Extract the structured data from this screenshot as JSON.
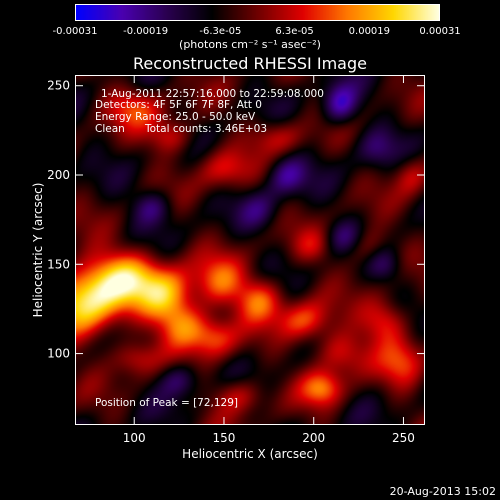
{
  "chart_data": {
    "type": "heatmap",
    "title": "Reconstructed RHESSI Image",
    "xlabel": "Heliocentric X (arcsec)",
    "ylabel": "Heliocentric Y (arcsec)",
    "xlim": [
      67,
      262
    ],
    "ylim": [
      60,
      256
    ],
    "x_ticks": [
      100,
      150,
      200,
      250
    ],
    "y_ticks": [
      100,
      150,
      200,
      250
    ],
    "colorbar": {
      "tick_labels": [
        "-0.00031",
        "-0.00019",
        "-6.3e-05",
        "6.3e-05",
        "0.00019",
        "0.00031"
      ],
      "tick_values": [
        -0.00031,
        -0.00019,
        -6.3e-05,
        6.3e-05,
        0.00019,
        0.00031
      ],
      "range": [
        -0.00031,
        0.00031
      ],
      "units": "(photons cm⁻² s⁻¹ asec⁻²)",
      "colors": [
        "#0000ff",
        "#4a00b0",
        "#2a0050",
        "#000000",
        "#6e0000",
        "#e00000",
        "#ff7a00",
        "#ffd700",
        "#ffffe0"
      ]
    },
    "annotations": {
      "time_range": "1-Aug-2011 22:57:16.000 to 22:59:08.000",
      "detectors": "Detectors: 4F 5F 6F 7F 8F, Att 0",
      "energy": "Energy Range: 25.0 - 50.0 keV",
      "method": "Clean",
      "counts": "Total counts: 3.46E+03",
      "peak": "Position of Peak = [72,129]"
    },
    "sources": [
      {
        "x": 72,
        "y": 129,
        "sx": 14,
        "sy": 14,
        "a": 1.0
      },
      {
        "x": 95,
        "y": 142,
        "sx": 14,
        "sy": 11,
        "a": 0.8
      },
      {
        "x": 118,
        "y": 132,
        "sx": 11,
        "sy": 11,
        "a": 0.75
      },
      {
        "x": 128,
        "y": 115,
        "sx": 10,
        "sy": 9,
        "a": 0.6
      },
      {
        "x": 148,
        "y": 140,
        "sx": 10,
        "sy": 10,
        "a": 0.55
      },
      {
        "x": 170,
        "y": 130,
        "sx": 9,
        "sy": 9,
        "a": 0.6
      },
      {
        "x": 145,
        "y": 108,
        "sx": 9,
        "sy": 8,
        "a": 0.5
      },
      {
        "x": 195,
        "y": 118,
        "sx": 10,
        "sy": 8,
        "a": 0.55
      },
      {
        "x": 215,
        "y": 100,
        "sx": 10,
        "sy": 9,
        "a": 0.5
      },
      {
        "x": 240,
        "y": 118,
        "sx": 9,
        "sy": 9,
        "a": 0.55
      },
      {
        "x": 250,
        "y": 95,
        "sx": 9,
        "sy": 10,
        "a": 0.45
      },
      {
        "x": 205,
        "y": 80,
        "sx": 8,
        "sy": 7,
        "a": 0.6
      },
      {
        "x": 158,
        "y": 76,
        "sx": 10,
        "sy": 7,
        "a": 0.4
      },
      {
        "x": 100,
        "y": 97,
        "sx": 9,
        "sy": 7,
        "a": 0.4
      },
      {
        "x": 100,
        "y": 238,
        "sx": 11,
        "sy": 8,
        "a": 0.45
      },
      {
        "x": 120,
        "y": 222,
        "sx": 9,
        "sy": 7,
        "a": 0.45
      },
      {
        "x": 150,
        "y": 203,
        "sx": 10,
        "sy": 8,
        "a": 0.4
      },
      {
        "x": 180,
        "y": 222,
        "sx": 10,
        "sy": 7,
        "a": 0.35
      },
      {
        "x": 230,
        "y": 160,
        "sx": 9,
        "sy": 8,
        "a": 0.4
      },
      {
        "x": 255,
        "y": 200,
        "sx": 7,
        "sy": 8,
        "a": 0.35
      },
      {
        "x": 200,
        "y": 160,
        "sx": 8,
        "sy": 7,
        "a": 0.3
      },
      {
        "x": 215,
        "y": 240,
        "sx": 7,
        "sy": 8,
        "a": -0.6
      },
      {
        "x": 185,
        "y": 200,
        "sx": 8,
        "sy": 8,
        "a": -0.45
      },
      {
        "x": 110,
        "y": 182,
        "sx": 8,
        "sy": 7,
        "a": -0.4
      },
      {
        "x": 218,
        "y": 165,
        "sx": 8,
        "sy": 7,
        "a": -0.35
      },
      {
        "x": 125,
        "y": 85,
        "sx": 8,
        "sy": 7,
        "a": -0.4
      },
      {
        "x": 240,
        "y": 150,
        "sx": 7,
        "sy": 7,
        "a": -0.35
      },
      {
        "x": 170,
        "y": 180,
        "sx": 8,
        "sy": 8,
        "a": -0.3
      },
      {
        "x": 235,
        "y": 215,
        "sx": 8,
        "sy": 8,
        "a": -0.3
      }
    ],
    "background": -0.18
  },
  "footer": {
    "date": "20-Aug-2013 15:02"
  }
}
